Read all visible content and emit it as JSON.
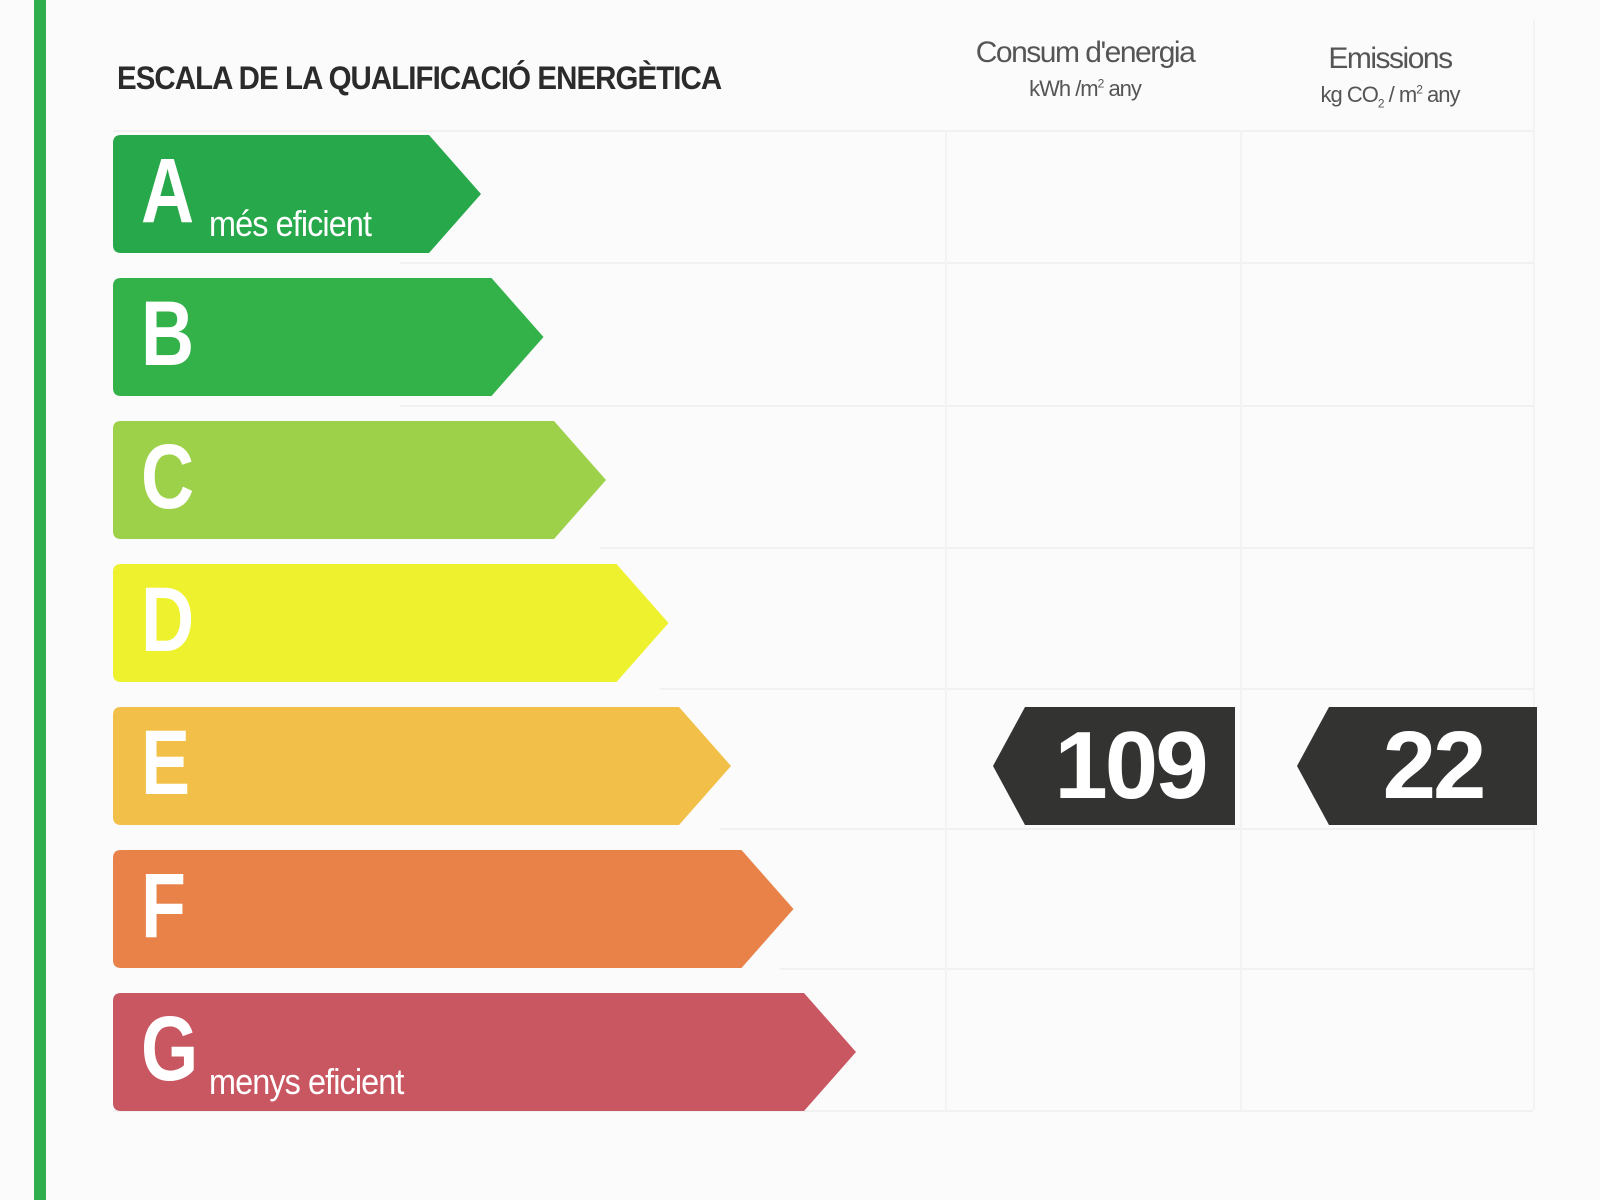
{
  "title": "ESCALA DE LA QUALIFICACIÓ ENERGÈTICA",
  "columns": {
    "energy": {
      "label": "Consum d'energia",
      "unit_prefix": "kWh /m",
      "unit_exp": "2",
      "unit_suffix": " any"
    },
    "emissions": {
      "label": "Emissions",
      "unit_prefix": "kg CO",
      "unit_sub": "2",
      "unit_mid": " / m",
      "unit_exp": "2",
      "unit_suffix": " any"
    }
  },
  "bands": [
    {
      "letter": "A",
      "note": "més eficient",
      "color": "#27a84a"
    },
    {
      "letter": "B",
      "note": "",
      "color": "#33b24a"
    },
    {
      "letter": "C",
      "note": "",
      "color": "#9dd149"
    },
    {
      "letter": "D",
      "note": "",
      "color": "#eef22e"
    },
    {
      "letter": "E",
      "note": "",
      "color": "#f2c048"
    },
    {
      "letter": "F",
      "note": "",
      "color": "#e98249"
    },
    {
      "letter": "G",
      "note": "menys eficient",
      "color": "#c95762"
    }
  ],
  "rating": {
    "band": "E",
    "energy_value": "109",
    "emissions_value": "22",
    "indicator_color": "#333432"
  }
}
